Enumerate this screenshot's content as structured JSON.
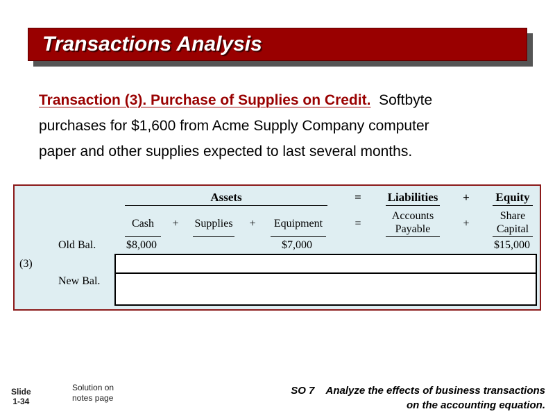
{
  "slide_title": "Transactions Analysis",
  "intro": {
    "heading": "Transaction (3).  Purchase of Supplies on Credit.",
    "body_line1": "Softbyte",
    "body_line2": "purchases for $1,600 from Acme Supply Company computer",
    "body_line3": "paper and other supplies expected to last several months."
  },
  "equation": {
    "assets_header": "Assets",
    "equals_top": "=",
    "liabilities_header": "Liabilities",
    "plus_top": "+",
    "equity_header": "Equity",
    "columns": {
      "cash": "Cash",
      "plus1": "+",
      "supplies": "Supplies",
      "plus2": "+",
      "equipment": "Equipment",
      "equals": "=",
      "accounts_payable_1": "Accounts",
      "accounts_payable_2": "Payable",
      "plus3": "+",
      "share_capital_1": "Share",
      "share_capital_2": "Capital"
    },
    "rows": {
      "old_bal_label": "Old Bal.",
      "old_cash": "$8,000",
      "old_equipment": "$7,000",
      "old_share_capital": "$15,000",
      "transaction_label": "(3)",
      "new_bal_label": "New Bal."
    }
  },
  "footer": {
    "slide_label": "Slide",
    "slide_number": "1-34",
    "notes_line1": "Solution on",
    "notes_line2": "notes page",
    "so_line1": "SO 7    Analyze the effects of business transactions",
    "so_line2": "on the accounting equation."
  },
  "colors": {
    "title_bar": "#990000",
    "panel_bg": "#dfeef2",
    "panel_border": "#8b1a1a",
    "highlight_text": "#990000"
  }
}
